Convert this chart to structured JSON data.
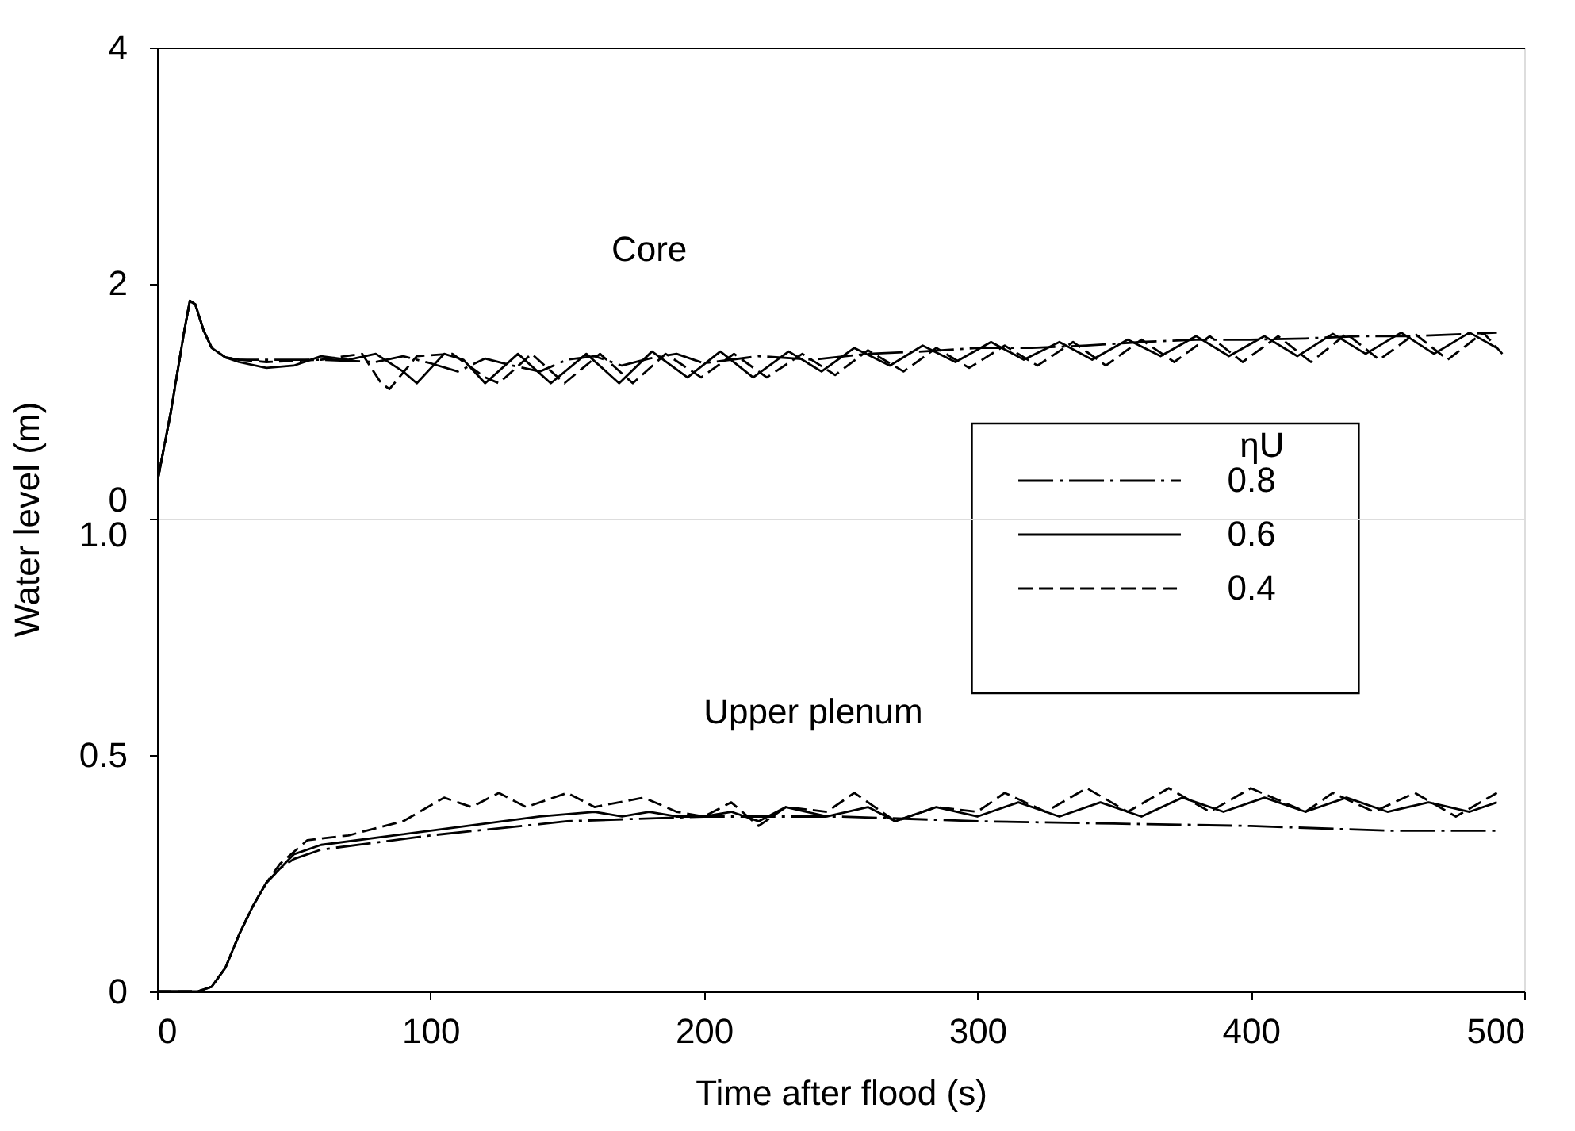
{
  "chart_data": [
    {
      "type": "line",
      "ylabel": "Water level (m)",
      "legend_title": "ηU",
      "legend": "bottom right",
      "tick_labels": "y",
      "xlim": [
        0,
        500
      ],
      "xticks": [
        0,
        100,
        200,
        300,
        400,
        500
      ],
      "ylim": [
        0,
        4
      ],
      "yticks": [
        0,
        2,
        4
      ],
      "annotations": [
        "Core"
      ],
      "series": [
        {
          "name": "0.8",
          "color": "#000000",
          "line_style": "dashdot",
          "x": [
            0,
            5,
            10,
            12,
            14,
            17,
            20,
            25,
            30,
            40,
            60,
            80,
            90,
            100,
            110,
            120,
            130,
            140,
            150,
            160,
            170,
            180,
            190,
            200,
            220,
            240,
            260,
            280,
            300,
            320,
            340,
            360,
            380,
            400,
            420,
            440,
            460,
            480,
            490
          ],
          "values": [
            0.3,
            0.9,
            1.6,
            1.85,
            1.82,
            1.6,
            1.45,
            1.37,
            1.35,
            1.35,
            1.35,
            1.33,
            1.38,
            1.32,
            1.25,
            1.36,
            1.3,
            1.25,
            1.35,
            1.38,
            1.3,
            1.36,
            1.4,
            1.32,
            1.38,
            1.35,
            1.4,
            1.42,
            1.45,
            1.45,
            1.47,
            1.5,
            1.52,
            1.52,
            1.53,
            1.55,
            1.55,
            1.57,
            1.58
          ]
        },
        {
          "name": "0.6",
          "color": "#000000",
          "line_style": "solid",
          "x": [
            0,
            5,
            10,
            12,
            14,
            17,
            20,
            25,
            30,
            40,
            50,
            60,
            70,
            80,
            90,
            95,
            105,
            112,
            120,
            132,
            144,
            157,
            169,
            181,
            194,
            206,
            218,
            231,
            243,
            255,
            268,
            280,
            292,
            305,
            317,
            330,
            342,
            355,
            367,
            380,
            392,
            405,
            417,
            430,
            442,
            455,
            467,
            480,
            490
          ],
          "values": [
            0.3,
            0.9,
            1.6,
            1.85,
            1.82,
            1.6,
            1.45,
            1.37,
            1.33,
            1.28,
            1.3,
            1.38,
            1.35,
            1.4,
            1.25,
            1.15,
            1.4,
            1.35,
            1.15,
            1.4,
            1.15,
            1.4,
            1.15,
            1.42,
            1.2,
            1.42,
            1.2,
            1.42,
            1.25,
            1.45,
            1.3,
            1.47,
            1.33,
            1.5,
            1.35,
            1.5,
            1.35,
            1.52,
            1.38,
            1.55,
            1.38,
            1.55,
            1.38,
            1.57,
            1.4,
            1.58,
            1.4,
            1.58,
            1.45
          ]
        },
        {
          "name": "0.4",
          "color": "#000000",
          "line_style": "dashed",
          "x": [
            0,
            5,
            10,
            12,
            14,
            17,
            20,
            25,
            30,
            40,
            60,
            75,
            82,
            85,
            95,
            108,
            120,
            125,
            137,
            149,
            162,
            174,
            186,
            199,
            211,
            223,
            236,
            248,
            260,
            273,
            285,
            297,
            310,
            322,
            335,
            347,
            360,
            372,
            385,
            397,
            410,
            422,
            435,
            447,
            460,
            472,
            485,
            492
          ],
          "values": [
            0.3,
            0.9,
            1.6,
            1.85,
            1.82,
            1.6,
            1.45,
            1.37,
            1.35,
            1.33,
            1.35,
            1.4,
            1.15,
            1.1,
            1.38,
            1.4,
            1.2,
            1.15,
            1.4,
            1.15,
            1.4,
            1.15,
            1.4,
            1.2,
            1.4,
            1.2,
            1.4,
            1.22,
            1.43,
            1.25,
            1.45,
            1.28,
            1.47,
            1.3,
            1.5,
            1.3,
            1.52,
            1.33,
            1.55,
            1.33,
            1.55,
            1.33,
            1.57,
            1.35,
            1.57,
            1.35,
            1.58,
            1.4
          ]
        }
      ]
    },
    {
      "type": "line",
      "xlabel": "Time after flood (s)",
      "xlim": [
        0,
        500
      ],
      "xticks": [
        0,
        100,
        200,
        300,
        400,
        500
      ],
      "ylim": [
        0,
        1
      ],
      "yticks": [
        {
          "value": 0,
          "label": "0"
        },
        0.5,
        {
          "value": 1,
          "label": "1.0"
        }
      ],
      "annotations": [
        "Upper plenum"
      ],
      "series": [
        {
          "color": "#000000",
          "line_style": "dashdot",
          "x": [
            0,
            15,
            20,
            25,
            30,
            35,
            40,
            45,
            50,
            60,
            100,
            150,
            200,
            250,
            300,
            350,
            400,
            450,
            490
          ],
          "values": [
            0,
            0,
            0.01,
            0.05,
            0.12,
            0.18,
            0.23,
            0.26,
            0.28,
            0.3,
            0.33,
            0.36,
            0.37,
            0.37,
            0.36,
            0.355,
            0.35,
            0.34,
            0.34
          ]
        },
        {
          "color": "#000000",
          "line_style": "solid",
          "x": [
            0,
            15,
            20,
            25,
            30,
            35,
            40,
            45,
            50,
            60,
            100,
            140,
            160,
            170,
            180,
            190,
            200,
            210,
            220,
            230,
            245,
            260,
            270,
            285,
            300,
            315,
            330,
            345,
            360,
            375,
            390,
            405,
            420,
            435,
            450,
            465,
            480,
            490
          ],
          "values": [
            0,
            0,
            0.01,
            0.05,
            0.12,
            0.18,
            0.23,
            0.26,
            0.29,
            0.31,
            0.34,
            0.37,
            0.38,
            0.37,
            0.38,
            0.37,
            0.37,
            0.38,
            0.36,
            0.39,
            0.37,
            0.39,
            0.36,
            0.39,
            0.37,
            0.4,
            0.37,
            0.4,
            0.37,
            0.41,
            0.38,
            0.41,
            0.38,
            0.41,
            0.38,
            0.4,
            0.38,
            0.4
          ]
        },
        {
          "color": "#000000",
          "line_style": "dashed",
          "x": [
            0,
            15,
            20,
            25,
            30,
            35,
            40,
            45,
            55,
            70,
            90,
            105,
            115,
            125,
            135,
            150,
            160,
            178,
            190,
            200,
            210,
            220,
            230,
            245,
            255,
            270,
            285,
            300,
            310,
            325,
            340,
            355,
            370,
            385,
            400,
            420,
            430,
            445,
            460,
            475,
            490
          ],
          "values": [
            0,
            0,
            0.01,
            0.05,
            0.12,
            0.18,
            0.23,
            0.27,
            0.32,
            0.33,
            0.36,
            0.41,
            0.39,
            0.42,
            0.39,
            0.42,
            0.39,
            0.41,
            0.38,
            0.37,
            0.4,
            0.35,
            0.39,
            0.38,
            0.42,
            0.36,
            0.39,
            0.38,
            0.42,
            0.38,
            0.43,
            0.38,
            0.43,
            0.38,
            0.43,
            0.38,
            0.42,
            0.38,
            0.42,
            0.37,
            0.42
          ]
        }
      ]
    }
  ]
}
